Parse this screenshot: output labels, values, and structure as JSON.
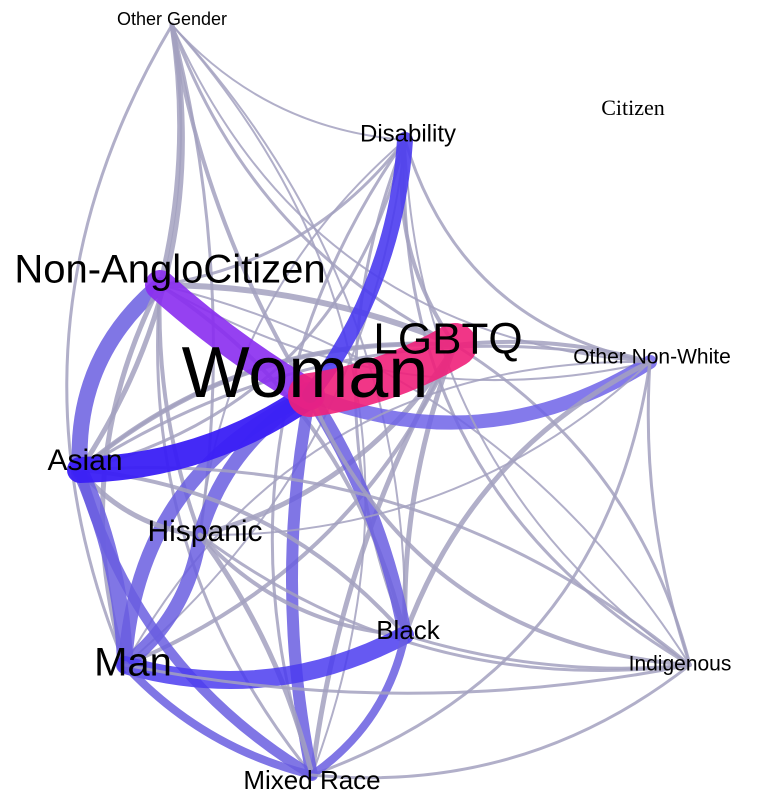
{
  "nodes": [
    {
      "label": "Other Gender"
    },
    {
      "label": "Citizen"
    },
    {
      "label": "Disability"
    },
    {
      "label": "Non-AngloCitizen"
    },
    {
      "label": "LGBTQ"
    },
    {
      "label": "Other Non-White"
    },
    {
      "label": "Woman"
    },
    {
      "label": "Asian"
    },
    {
      "label": "Hispanic"
    },
    {
      "label": "Black"
    },
    {
      "label": "Man"
    },
    {
      "label": "Indigenous"
    },
    {
      "label": "Mixed Race"
    }
  ]
}
